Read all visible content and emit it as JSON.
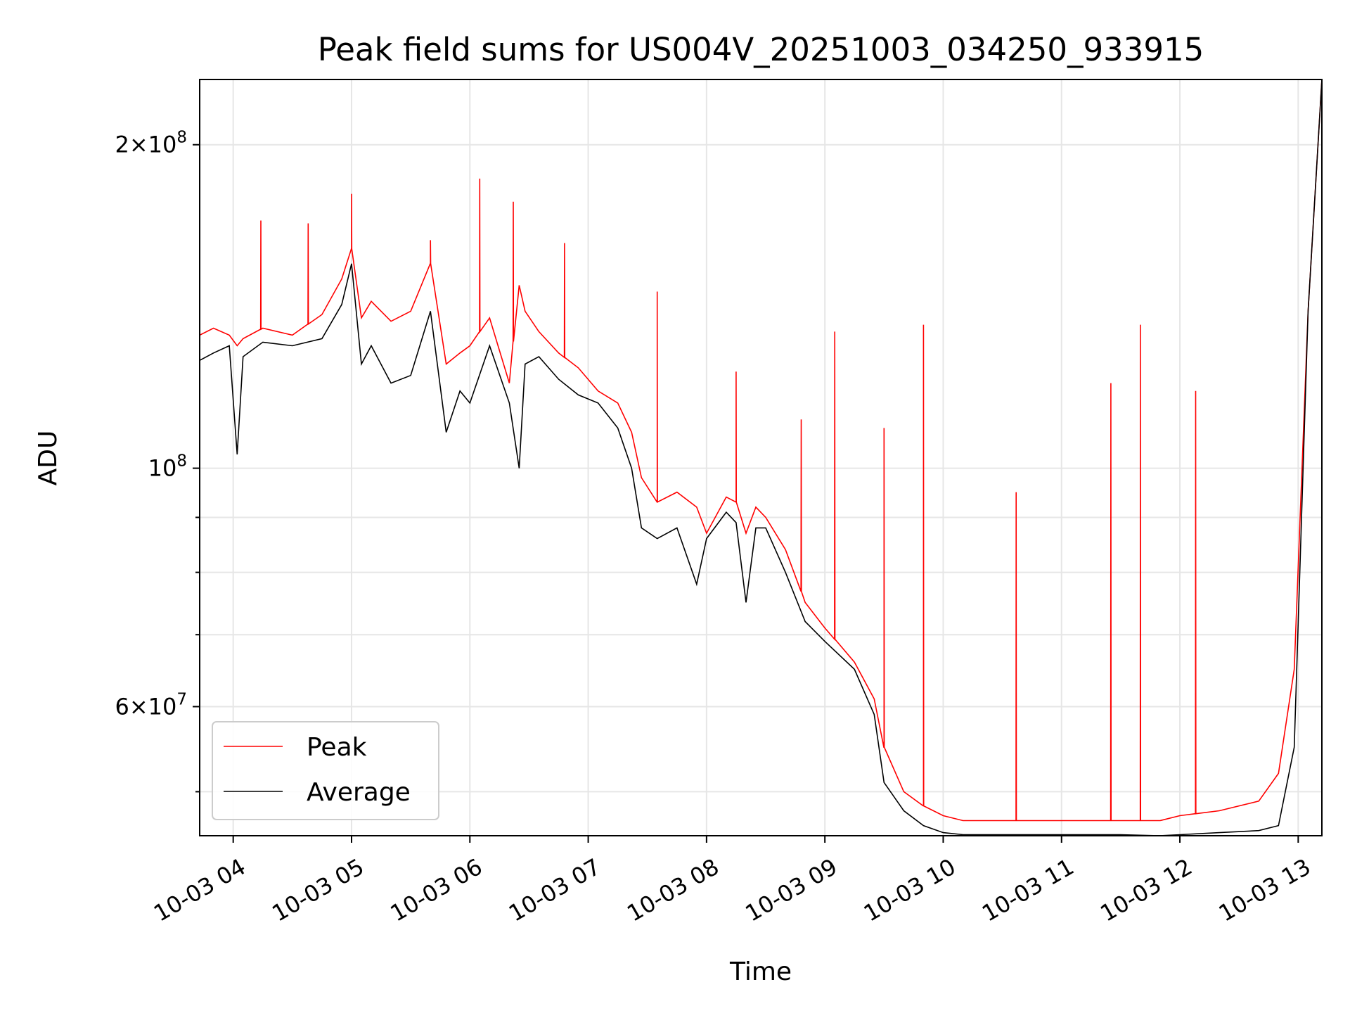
{
  "chart_data": {
    "type": "line",
    "title": "Peak field sums for US004V_20251003_034250_933915",
    "xlabel": "Time",
    "ylabel": "ADU",
    "yscale": "log",
    "xlim": [
      "2025-10-03 03:43",
      "2025-10-03 13:12"
    ],
    "ylim": [
      45500000,
      230000000
    ],
    "grid": true,
    "legend_position": "lower left",
    "x_tick_labels": [
      "10-03 04",
      "10-03 05",
      "10-03 06",
      "10-03 07",
      "10-03 08",
      "10-03 09",
      "10-03 10",
      "10-03 11",
      "10-03 12",
      "10-03 13"
    ],
    "y_tick_labels": [
      {
        "value": 60000000,
        "mantissa": "6",
        "exponent": "7"
      },
      {
        "value": 100000000,
        "mantissa": "",
        "exponent": "8"
      },
      {
        "value": 200000000,
        "mantissa": "2",
        "exponent": "8"
      }
    ],
    "x": [
      "03:43",
      "03:50",
      "03:58",
      "04:02",
      "04:05",
      "04:15",
      "04:30",
      "04:45",
      "04:55",
      "05:00",
      "05:05",
      "05:10",
      "05:20",
      "05:30",
      "05:40",
      "05:48",
      "05:55",
      "06:00",
      "06:10",
      "06:20",
      "06:25",
      "06:28",
      "06:35",
      "06:45",
      "06:55",
      "07:05",
      "07:15",
      "07:22",
      "07:27",
      "07:35",
      "07:45",
      "07:55",
      "08:00",
      "08:10",
      "08:15",
      "08:20",
      "08:25",
      "08:30",
      "08:40",
      "08:50",
      "09:00",
      "09:15",
      "09:25",
      "09:30",
      "09:40",
      "09:50",
      "10:00",
      "10:10",
      "10:30",
      "11:00",
      "11:30",
      "11:50",
      "12:00",
      "12:20",
      "12:40",
      "12:50",
      "12:58",
      "13:05",
      "13:12"
    ],
    "series": [
      {
        "name": "Peak",
        "color": "#ff0000",
        "values": [
          133000000,
          135000000,
          133000000,
          130000000,
          132000000,
          135000000,
          133000000,
          139000000,
          150000000,
          160000000,
          138000000,
          143000000,
          137000000,
          140000000,
          155000000,
          125000000,
          128000000,
          130000000,
          138000000,
          120000000,
          148000000,
          140000000,
          134000000,
          128000000,
          124000000,
          118000000,
          115000000,
          108000000,
          98000000,
          93000000,
          95000000,
          92000000,
          87000000,
          94000000,
          93000000,
          87000000,
          92000000,
          90000000,
          84000000,
          75000000,
          71000000,
          66000000,
          61000000,
          55000000,
          50000000,
          48500000,
          47500000,
          47000000,
          47000000,
          47000000,
          47000000,
          47000000,
          47500000,
          48000000,
          49000000,
          52000000,
          65000000,
          140000000,
          230000000
        ],
        "spikes": [
          {
            "x": "04:14",
            "value": 170000000
          },
          {
            "x": "04:38",
            "value": 169000000
          },
          {
            "x": "05:00",
            "value": 180000000
          },
          {
            "x": "05:40",
            "value": 163000000
          },
          {
            "x": "06:05",
            "value": 186000000
          },
          {
            "x": "06:22",
            "value": 177000000
          },
          {
            "x": "06:48",
            "value": 162000000
          },
          {
            "x": "07:35",
            "value": 146000000
          },
          {
            "x": "08:15",
            "value": 123000000
          },
          {
            "x": "08:48",
            "value": 111000000
          },
          {
            "x": "09:05",
            "value": 134000000
          },
          {
            "x": "09:30",
            "value": 109000000
          },
          {
            "x": "09:50",
            "value": 136000000
          },
          {
            "x": "10:37",
            "value": 95000000
          },
          {
            "x": "11:25",
            "value": 120000000
          },
          {
            "x": "11:40",
            "value": 136000000
          },
          {
            "x": "12:08",
            "value": 118000000
          }
        ]
      },
      {
        "name": "Average",
        "color": "#000000",
        "values": [
          126000000,
          128000000,
          130000000,
          103000000,
          127000000,
          131000000,
          130000000,
          132000000,
          142000000,
          155000000,
          125000000,
          130000000,
          120000000,
          122000000,
          140000000,
          108000000,
          118000000,
          115000000,
          130000000,
          115000000,
          100000000,
          125000000,
          127000000,
          121000000,
          117000000,
          115000000,
          109000000,
          100000000,
          88000000,
          86000000,
          88000000,
          78000000,
          86000000,
          91000000,
          89000000,
          75000000,
          88000000,
          88000000,
          80000000,
          72000000,
          69000000,
          65000000,
          59000000,
          51000000,
          48000000,
          46500000,
          45800000,
          45600000,
          45600000,
          45600000,
          45600000,
          45500000,
          45600000,
          45800000,
          46000000,
          46500000,
          55000000,
          140000000,
          230000000
        ]
      }
    ]
  }
}
